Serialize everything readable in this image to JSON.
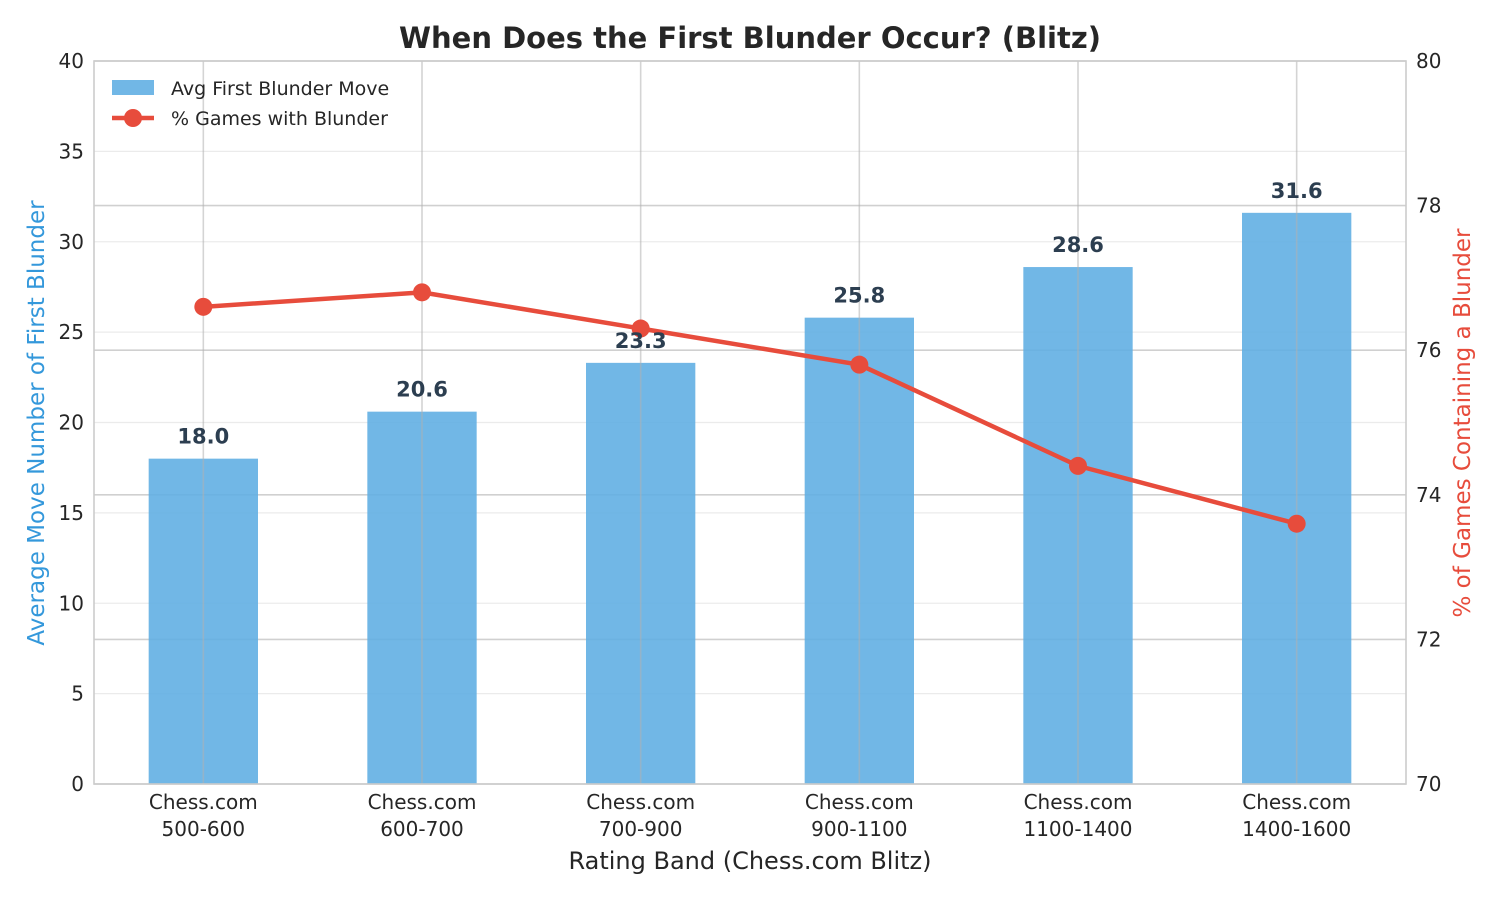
{
  "colors": {
    "bar": "#5dade2",
    "line": "#e74c3c",
    "left_axis_label": "#3498db",
    "right_axis_label": "#e74c3c",
    "bar_label": "#2c3e50",
    "grid": "#e6e6e6",
    "spine": "#cccccc"
  },
  "chart_data": {
    "type": "bar",
    "title": "When Does the First Blunder Occur? (Blitz)",
    "xlabel": "Rating Band (Chess.com Blitz)",
    "ylabel": "Average Move Number of First Blunder",
    "ylabel_right": "% of Games Containing a Blunder",
    "categories": [
      [
        "Chess.com",
        "500-600"
      ],
      [
        "Chess.com",
        "600-700"
      ],
      [
        "Chess.com",
        "700-900"
      ],
      [
        "Chess.com",
        "900-1100"
      ],
      [
        "Chess.com",
        "1100-1400"
      ],
      [
        "Chess.com",
        "1400-1600"
      ]
    ],
    "ylim": [
      0,
      40
    ],
    "yticks": [
      "0",
      "5",
      "10",
      "15",
      "20",
      "25",
      "30",
      "35",
      "40"
    ],
    "ylim_right": [
      70,
      80
    ],
    "yticks_right": [
      "70",
      "72",
      "74",
      "76",
      "78",
      "80"
    ],
    "series": [
      {
        "name": "Avg First Blunder Move",
        "kind": "bar",
        "axis": "left",
        "values": [
          18.0,
          20.6,
          23.3,
          25.8,
          28.6,
          31.6
        ],
        "labels": [
          "18.0",
          "20.6",
          "23.3",
          "25.8",
          "28.6",
          "31.6"
        ]
      },
      {
        "name": "% Games with Blunder",
        "kind": "line",
        "axis": "right",
        "values": [
          76.6,
          76.8,
          76.3,
          75.8,
          74.4,
          73.6
        ]
      }
    ],
    "legend": "top-left",
    "grid": true
  }
}
